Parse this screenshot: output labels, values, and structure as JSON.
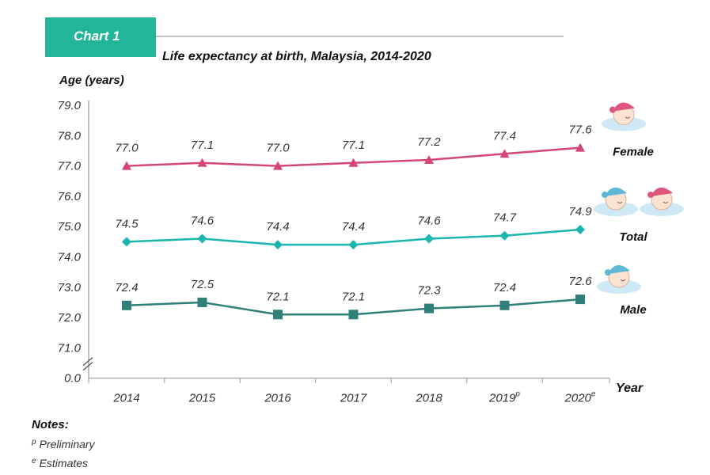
{
  "tab_label": "Chart 1",
  "chart_data": {
    "type": "line",
    "title": "Life expectancy at birth, Malaysia, 2014-2020",
    "ylabel": "Age (years)",
    "xlabel": "Year",
    "ylim": [
      71.0,
      79.0
    ],
    "y_ticks": [
      "79.0",
      "78.0",
      "77.0",
      "76.0",
      "75.0",
      "74.0",
      "73.0",
      "72.0",
      "71.0",
      "0.0"
    ],
    "axis_break": true,
    "grid": false,
    "categories": [
      {
        "label": "2014",
        "sup": ""
      },
      {
        "label": "2015",
        "sup": ""
      },
      {
        "label": "2016",
        "sup": ""
      },
      {
        "label": "2017",
        "sup": ""
      },
      {
        "label": "2018",
        "sup": ""
      },
      {
        "label": "2019",
        "sup": "p"
      },
      {
        "label": "2020",
        "sup": "e"
      }
    ],
    "series": [
      {
        "name": "Female",
        "marker": "triangle",
        "color": "#d6457a",
        "values": [
          77.0,
          77.1,
          77.0,
          77.1,
          77.2,
          77.4,
          77.6
        ],
        "labels": [
          "77.0",
          "77.1",
          "77.0",
          "77.1",
          "77.2",
          "77.4",
          "77.6"
        ]
      },
      {
        "name": "Total",
        "marker": "diamond",
        "color": "#1ab5ae",
        "values": [
          74.5,
          74.6,
          74.4,
          74.4,
          74.6,
          74.7,
          74.9
        ],
        "labels": [
          "74.5",
          "74.6",
          "74.4",
          "74.4",
          "74.6",
          "74.7",
          "74.9"
        ]
      },
      {
        "name": "Male",
        "marker": "square",
        "color": "#2f8079",
        "values": [
          72.4,
          72.5,
          72.1,
          72.1,
          72.3,
          72.4,
          72.6
        ],
        "labels": [
          "72.4",
          "72.5",
          "72.1",
          "72.1",
          "72.3",
          "72.4",
          "72.6"
        ]
      }
    ]
  },
  "notes": {
    "title": "Notes",
    "items": [
      {
        "sup": "p",
        "text": "Preliminary"
      },
      {
        "sup": "e",
        "text": "Estimates"
      }
    ]
  },
  "colors": {
    "tab": "#22b59a",
    "axis": "#999999",
    "baby_pink": "#e0557c",
    "baby_blue": "#5cb8d6",
    "cloud": "#cfe8f5"
  }
}
